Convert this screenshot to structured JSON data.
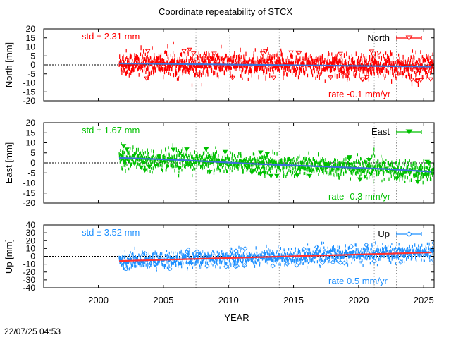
{
  "title": "Coordinate repeatability of STCX",
  "xlabel": "YEAR",
  "timestamp": "22/07/25 04:53",
  "x_ticks": [
    "2000",
    "2005",
    "2010",
    "2015",
    "2020",
    "2025"
  ],
  "chart_data": [
    {
      "type": "scatter",
      "component": "North",
      "ylabel": "North [mm]",
      "legend": "North",
      "legend_position": "top-right",
      "std_label": "std ± 2.31 mm",
      "rate_label": "rate -0.1 mm/yr",
      "color": "#ff0000",
      "trend_color": "#3a6fd8",
      "marker": "triangle-down-open",
      "xlim": [
        1995.8,
        2025.8
      ],
      "ylim": [
        -20,
        20
      ],
      "yticks": [
        -20,
        -15,
        -10,
        -5,
        0,
        5,
        10,
        15,
        20
      ],
      "data_start": 2001.6,
      "data_end": 2025.8,
      "std_mm": 2.31,
      "rate_mm_per_yr": -0.1,
      "trend": {
        "x": [
          2001.6,
          2025.8
        ],
        "y": [
          0.8,
          -1.0
        ]
      },
      "event_lines": [
        2007.5,
        2010.1,
        2013.9,
        2021.2,
        2022.9
      ]
    },
    {
      "type": "scatter",
      "component": "East",
      "ylabel": "East [mm]",
      "legend": "East",
      "legend_position": "top-right",
      "std_label": "std ± 1.67 mm",
      "rate_label": "rate -0.3 mm/yr",
      "color": "#00c000",
      "trend_color": "#3a6fd8",
      "marker": "triangle-down-filled",
      "xlim": [
        1995.8,
        2025.8
      ],
      "ylim": [
        -20,
        20
      ],
      "yticks": [
        -20,
        -15,
        -10,
        -5,
        0,
        5,
        10,
        15,
        20
      ],
      "data_start": 2001.6,
      "data_end": 2025.8,
      "std_mm": 1.67,
      "rate_mm_per_yr": -0.3,
      "trend": {
        "x": [
          2001.6,
          2006,
          2012,
          2018,
          2022,
          2025.8
        ],
        "y": [
          2.5,
          1.5,
          -0.5,
          -2.0,
          -3.0,
          -4.5
        ]
      },
      "event_lines": [
        2007.5,
        2010.1,
        2013.9,
        2021.2,
        2022.9
      ]
    },
    {
      "type": "scatter",
      "component": "Up",
      "ylabel": "Up [mm]",
      "legend": "Up",
      "legend_position": "top-right",
      "std_label": "std ± 3.52 mm",
      "rate_label": "rate  0.5 mm/yr",
      "color": "#1e90ff",
      "trend_color": "#ff3030",
      "marker": "diamond-open",
      "xlim": [
        1995.8,
        2025.8
      ],
      "ylim": [
        -40,
        40
      ],
      "yticks": [
        -40,
        -30,
        -20,
        -10,
        0,
        10,
        20,
        30,
        40
      ],
      "data_start": 2001.6,
      "data_end": 2025.8,
      "std_mm": 3.52,
      "rate_mm_per_yr": 0.5,
      "trend": {
        "x": [
          2001.6,
          2025.8
        ],
        "y": [
          -6.0,
          5.0
        ]
      },
      "event_lines": [
        2007.5,
        2010.1,
        2013.9,
        2021.2,
        2022.9
      ]
    }
  ]
}
